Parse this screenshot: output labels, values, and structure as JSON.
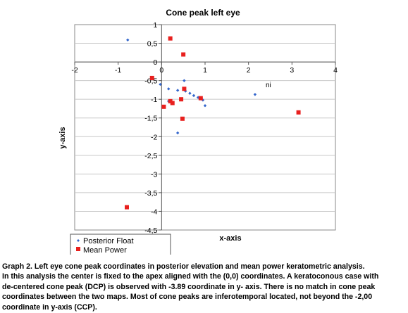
{
  "chart_data": {
    "type": "scatter",
    "title": "Cone peak left eye",
    "xlabel": "x-axis",
    "ylabel": "y-axis",
    "xlim": [
      -2,
      4
    ],
    "ylim": [
      -4.5,
      1
    ],
    "x_ticks": [
      -2,
      -1,
      0,
      1,
      2,
      3,
      4
    ],
    "x_tick_labels": [
      "-2",
      "-1",
      "0",
      "1",
      "2",
      "3",
      "4"
    ],
    "y_ticks": [
      1,
      0.5,
      0,
      -0.5,
      -1,
      -1.5,
      -2,
      -2.5,
      -3,
      -3.5,
      -4,
      -4.5
    ],
    "y_tick_labels": [
      "1",
      "0,5",
      "0",
      "-0,5",
      "-1",
      "-1,5",
      "-2",
      "-2,5",
      "-3",
      "-3,5",
      "-4",
      "-4,5"
    ],
    "grid": "horizontal",
    "legend_position": "bottom-left",
    "annotation": "ni",
    "series": [
      {
        "name": "Posterior Float",
        "marker": "diamond",
        "color": "#3366cc",
        "points": [
          [
            -0.78,
            0.59
          ],
          [
            -0.03,
            -0.6
          ],
          [
            0.16,
            -0.72
          ],
          [
            0.37,
            -0.76
          ],
          [
            0.52,
            -0.5
          ],
          [
            0.55,
            -0.78
          ],
          [
            0.65,
            -0.84
          ],
          [
            0.74,
            -0.9
          ],
          [
            0.84,
            -0.95
          ],
          [
            0.95,
            -1.02
          ],
          [
            0.16,
            -1.05
          ],
          [
            1.0,
            -1.17
          ],
          [
            0.37,
            -1.9
          ],
          [
            2.15,
            -0.87
          ]
        ]
      },
      {
        "name": "Mean Power",
        "marker": "square",
        "color": "#e8201e",
        "points": [
          [
            0.2,
            0.63
          ],
          [
            0.5,
            0.2
          ],
          [
            -0.22,
            -0.43
          ],
          [
            0.52,
            -0.72
          ],
          [
            0.9,
            -0.97
          ],
          [
            0.45,
            -1.0
          ],
          [
            0.2,
            -1.05
          ],
          [
            0.25,
            -1.1
          ],
          [
            0.05,
            -1.2
          ],
          [
            3.15,
            -1.35
          ],
          [
            0.48,
            -1.52
          ],
          [
            -0.8,
            -3.89
          ]
        ]
      }
    ]
  },
  "caption": [
    "Graph 2. Left eye cone peak coordinates in posterior elevation and mean power keratometric analysis.",
    "In this analysis the center is fixed to the apex aligned with the (0,0) coordinates. A keratoconous case with",
    "de-centered cone peak (DCP) is observed with -3.89 coordinate in y- axis. There is no match in cone peak",
    "coordinates between the two maps. Most of cone peaks are inferotemporal located, not beyond the -2,00",
    "coordinate in y-axis (CCP)."
  ]
}
